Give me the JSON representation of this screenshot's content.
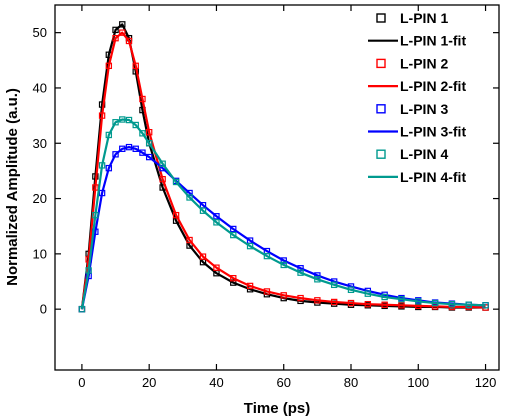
{
  "chart_data": {
    "type": "line",
    "xlabel": "Time (ps)",
    "ylabel": "Normalized Amplitude (a.u.)",
    "xlim": [
      -8,
      124
    ],
    "ylim": [
      -11,
      55
    ],
    "xticks": [
      0,
      20,
      40,
      60,
      80,
      100,
      120
    ],
    "yticks": [
      0,
      10,
      20,
      30,
      40,
      50
    ],
    "legend_position": "top-right",
    "series": [
      {
        "name": "L-PIN 1",
        "fit_name": "L-PIN 1-fit",
        "color": "#000000",
        "x": [
          0,
          2,
          4,
          6,
          8,
          10,
          12,
          14,
          16,
          18,
          20,
          24,
          28,
          32,
          36,
          40,
          45,
          50,
          55,
          60,
          65,
          70,
          75,
          80,
          85,
          90,
          95,
          100,
          105,
          110,
          115,
          120
        ],
        "y": [
          0,
          10,
          24,
          37,
          46,
          50.5,
          51.5,
          49,
          43,
          36,
          30,
          22,
          16,
          11.5,
          8.5,
          6.5,
          4.8,
          3.6,
          2.7,
          2.0,
          1.5,
          1.2,
          1.0,
          0.8,
          0.7,
          0.6,
          0.5,
          0.4,
          0.4,
          0.3,
          0.3,
          0.3
        ]
      },
      {
        "name": "L-PIN 2",
        "fit_name": "L-PIN 2-fit",
        "color": "#ff0000",
        "x": [
          0,
          2,
          4,
          6,
          8,
          10,
          12,
          14,
          16,
          18,
          20,
          24,
          28,
          32,
          36,
          40,
          45,
          50,
          55,
          60,
          65,
          70,
          75,
          80,
          85,
          90,
          95,
          100,
          105,
          110,
          115,
          120
        ],
        "y": [
          0,
          9,
          22,
          35,
          44,
          49,
          50,
          48.5,
          44,
          38,
          32,
          23.5,
          17,
          12.5,
          9.5,
          7.5,
          5.6,
          4.2,
          3.2,
          2.5,
          2.0,
          1.6,
          1.3,
          1.1,
          0.9,
          0.8,
          0.7,
          0.6,
          0.5,
          0.4,
          0.4,
          0.3
        ]
      },
      {
        "name": "L-PIN 3",
        "fit_name": "L-PIN 3-fit",
        "color": "#0000ff",
        "x": [
          0,
          2,
          4,
          6,
          8,
          10,
          12,
          14,
          16,
          18,
          20,
          24,
          28,
          32,
          36,
          40,
          45,
          50,
          55,
          60,
          65,
          70,
          75,
          80,
          85,
          90,
          95,
          100,
          105,
          110,
          115,
          120
        ],
        "y": [
          0,
          6,
          14,
          21,
          25.5,
          28,
          29,
          29.3,
          29,
          28.3,
          27.5,
          25.5,
          23.2,
          21,
          18.8,
          16.8,
          14.5,
          12.4,
          10.5,
          8.8,
          7.4,
          6.1,
          5.0,
          4.1,
          3.3,
          2.6,
          2.0,
          1.6,
          1.2,
          1.0,
          0.8,
          0.7
        ]
      },
      {
        "name": "L-PIN 4",
        "fit_name": "L-PIN 4-fit",
        "color": "#009a8f",
        "x": [
          0,
          2,
          4,
          6,
          8,
          10,
          12,
          14,
          16,
          18,
          20,
          24,
          28,
          32,
          36,
          40,
          45,
          50,
          55,
          60,
          65,
          70,
          75,
          80,
          85,
          90,
          95,
          100,
          105,
          110,
          115,
          120
        ],
        "y": [
          0,
          7,
          17,
          26,
          31.5,
          33.8,
          34.3,
          34.2,
          33.3,
          31.8,
          30,
          26.3,
          23,
          20.2,
          17.8,
          15.7,
          13.4,
          11.4,
          9.6,
          8.0,
          6.6,
          5.4,
          4.4,
          3.5,
          2.8,
          2.2,
          1.8,
          1.4,
          1.1,
          0.9,
          0.8,
          0.7
        ]
      }
    ]
  }
}
